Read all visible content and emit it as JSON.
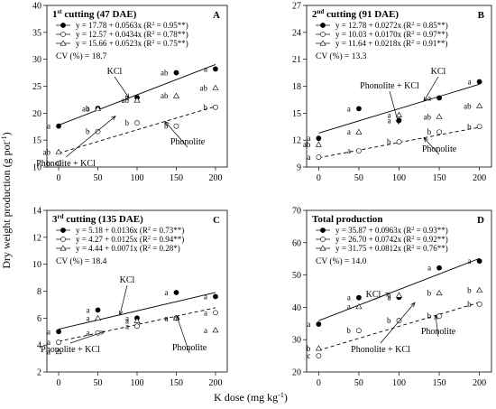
{
  "figure": {
    "ylabel": "Dry weight production (g pot",
    "ylabel_sup": "-1",
    "ylabel_end": ")",
    "xlabel": "K dose (mg kg",
    "xlabel_sup": "-1",
    "xlabel_end": ")"
  },
  "chart_data": [
    {
      "id": "A",
      "type": "scatter",
      "panel_letter": "A",
      "title_pre": "1",
      "title_sup": "st",
      "title_post": " cutting (47 DAE)",
      "x": [
        0,
        50,
        100,
        150,
        200
      ],
      "xticks": [
        0,
        50,
        100,
        150,
        200
      ],
      "ylim": [
        10,
        40
      ],
      "yticks": [
        10,
        15,
        20,
        25,
        30,
        35,
        40
      ],
      "series": [
        {
          "name": "KCl",
          "marker": "filled-circle",
          "values": [
            17.6,
            20.9,
            22.9,
            27.5,
            28.2
          ],
          "letters": [
            "a",
            "a",
            "a",
            "ab",
            "a"
          ],
          "equation": "y = 17.78 + 0.0563x",
          "r2_pre": "(R",
          "r2_sup": "2",
          "r2_post": " = 0.95**)",
          "fit": [
            17.78,
            0.0563
          ],
          "line": "solid"
        },
        {
          "name": "Phonolite",
          "marker": "open-circle",
          "values": [
            10.7,
            16.6,
            18.2,
            17.6,
            21.1
          ],
          "letters": [
            "b",
            "b",
            "b",
            "b",
            "b"
          ],
          "equation": "y = 12.57 + 0.0434x",
          "r2_pre": "(R",
          "r2_sup": "2",
          "r2_post": " = 0.78**)",
          "fit": [
            12.57,
            0.0434
          ],
          "line": "dashed"
        },
        {
          "name": "Phonolite + KCl",
          "marker": "open-triangle",
          "values": [
            12.8,
            20.8,
            22.4,
            23.2,
            24.7
          ],
          "letters": [
            "ab",
            "ab",
            "ab",
            "ab",
            "ab"
          ],
          "equation": "y = 15.66 + 0.0523x",
          "r2_pre": "(R",
          "r2_sup": "2",
          "r2_post": " = 0.75**)",
          "fit": [
            15.66,
            0.0523
          ],
          "line": "none"
        }
      ],
      "cv": "CV (%) = 18.7",
      "annotations": [
        "KCl",
        "Phonolite + KCl",
        "Phonolite"
      ]
    },
    {
      "id": "B",
      "type": "scatter",
      "panel_letter": "B",
      "title_pre": "2",
      "title_sup": "nd",
      "title_post": " cutting (91 DAE)",
      "x": [
        0,
        50,
        100,
        150,
        200
      ],
      "xticks": [
        0,
        50,
        100,
        150,
        200
      ],
      "ylim": [
        9,
        27
      ],
      "yticks": [
        9,
        12,
        15,
        18,
        21,
        24,
        27
      ],
      "series": [
        {
          "name": "KCl",
          "marker": "filled-circle",
          "values": [
            12.2,
            15.5,
            14.2,
            16.7,
            18.5
          ],
          "letters": [
            "a",
            "a",
            "a",
            "a",
            "a"
          ],
          "equation": "y = 12.78 + 0.0272x",
          "r2_pre": "(R",
          "r2_sup": "2",
          "r2_post": " = 0.85**)",
          "fit": [
            12.78,
            0.0272
          ],
          "line": "solid"
        },
        {
          "name": "Phonolite",
          "marker": "open-circle",
          "values": [
            10.1,
            10.8,
            11.8,
            12.9,
            13.5
          ],
          "letters": [
            "a",
            "a",
            "b",
            "b",
            "b"
          ],
          "equation": "y = 10.03 + 0.0170x",
          "r2_pre": "(R",
          "r2_sup": "2",
          "r2_post": " = 0.97**)",
          "fit": [
            10.03,
            0.017
          ],
          "line": "dashed"
        },
        {
          "name": "Phonolite + KCl",
          "marker": "open-triangle",
          "values": [
            11.5,
            12.9,
            14.8,
            14.6,
            15.8
          ],
          "letters": [
            "ab",
            "a",
            "a",
            "ab",
            "ab"
          ],
          "equation": "y = 11.64 + 0.0218x",
          "r2_pre": "(R",
          "r2_sup": "2",
          "r2_post": " = 0.91**)",
          "fit": [
            11.64,
            0.0218
          ],
          "line": "none"
        }
      ],
      "cv": "CV (%) = 13.3",
      "annotations": [
        "KCl",
        "Phonolite + KCl",
        "Phonolite"
      ]
    },
    {
      "id": "C",
      "type": "scatter",
      "panel_letter": "C",
      "title_pre": "3",
      "title_sup": "rd",
      "title_post": " cutting (135 DAE)",
      "x": [
        0,
        50,
        100,
        150,
        200
      ],
      "xticks": [
        0,
        50,
        100,
        150,
        200
      ],
      "ylim": [
        2,
        14
      ],
      "yticks": [
        2,
        4,
        6,
        8,
        10,
        12,
        14
      ],
      "series": [
        {
          "name": "KCl",
          "marker": "filled-circle",
          "values": [
            5.0,
            6.6,
            6.0,
            7.9,
            7.6
          ],
          "letters": [
            "a",
            "a",
            "a",
            "a",
            "a"
          ],
          "equation": "y = 5.18 + 0.0136x",
          "r2_pre": "(R",
          "r2_sup": "2",
          "r2_post": " = 0.73**)",
          "fit": [
            5.18,
            0.0136
          ],
          "line": "solid"
        },
        {
          "name": "Phonolite",
          "marker": "open-circle",
          "values": [
            4.2,
            4.9,
            5.4,
            6.0,
            6.4
          ],
          "letters": [
            "a",
            "a",
            "a",
            "a",
            "a"
          ],
          "equation": "y = 4.27 + 0.0125x",
          "r2_pre": "(R",
          "r2_sup": "2",
          "r2_post": " = 0.94**)",
          "fit": [
            4.27,
            0.0125
          ],
          "line": "dashed"
        },
        {
          "name": "Phonolite + KCl",
          "marker": "open-triangle",
          "values": [
            3.5,
            6.0,
            5.8,
            6.0,
            5.1
          ],
          "letters": [
            "a",
            "a",
            "a",
            "a",
            "a"
          ],
          "equation": "y = 4.44 + 0.0071x",
          "r2_pre": "(R",
          "r2_sup": "2",
          "r2_post": " = 0.28*)",
          "fit": [
            4.44,
            0.0071
          ],
          "line": "none"
        }
      ],
      "cv": "CV (%) = 18.4",
      "annotations": [
        "KCl",
        "Phonolite + KCl",
        "Phonolite"
      ]
    },
    {
      "id": "D",
      "type": "scatter",
      "panel_letter": "D",
      "title_pre": "Total production",
      "title_sup": "",
      "title_post": "",
      "x": [
        0,
        50,
        100,
        150,
        200
      ],
      "xticks": [
        0,
        50,
        100,
        150,
        200
      ],
      "ylim": [
        20,
        70
      ],
      "yticks": [
        20,
        30,
        40,
        50,
        60,
        70
      ],
      "series": [
        {
          "name": "KCl",
          "marker": "filled-circle",
          "values": [
            34.8,
            43.0,
            43.1,
            52.2,
            54.3
          ],
          "letters": [
            "a",
            "a",
            "a",
            "a",
            "a"
          ],
          "equation": "y = 35.87 + 0.0963x",
          "r2_pre": "(R",
          "r2_sup": "2",
          "r2_post": " = 0.93**)",
          "fit": [
            35.87,
            0.0963
          ],
          "line": "solid"
        },
        {
          "name": "Phonolite",
          "marker": "open-circle",
          "values": [
            25.0,
            32.8,
            35.9,
            37.3,
            41.0
          ],
          "letters": [
            "c",
            "b",
            "b",
            "b",
            "b"
          ],
          "equation": "y = 26.70 + 0.0742x",
          "r2_pre": "(R",
          "r2_sup": "2",
          "r2_post": " = 0.92**)",
          "fit": [
            26.7,
            0.0742
          ],
          "line": "dashed"
        },
        {
          "name": "Phonolite + KCl",
          "marker": "open-triangle",
          "values": [
            27.3,
            40.2,
            43.7,
            44.4,
            45.3
          ],
          "letters": [
            "b",
            "a",
            "a",
            "b",
            "b"
          ],
          "equation": "y = 31.75 + 0.0812x",
          "r2_pre": "(R",
          "r2_sup": "2",
          "r2_post": " = 0.76**)",
          "fit": [
            31.75,
            0.0812
          ],
          "line": "none"
        }
      ],
      "cv": "CV (%) = 14.0",
      "annotations": [
        "KCl",
        "Phonolite + KCl",
        "Phonolite"
      ]
    }
  ]
}
